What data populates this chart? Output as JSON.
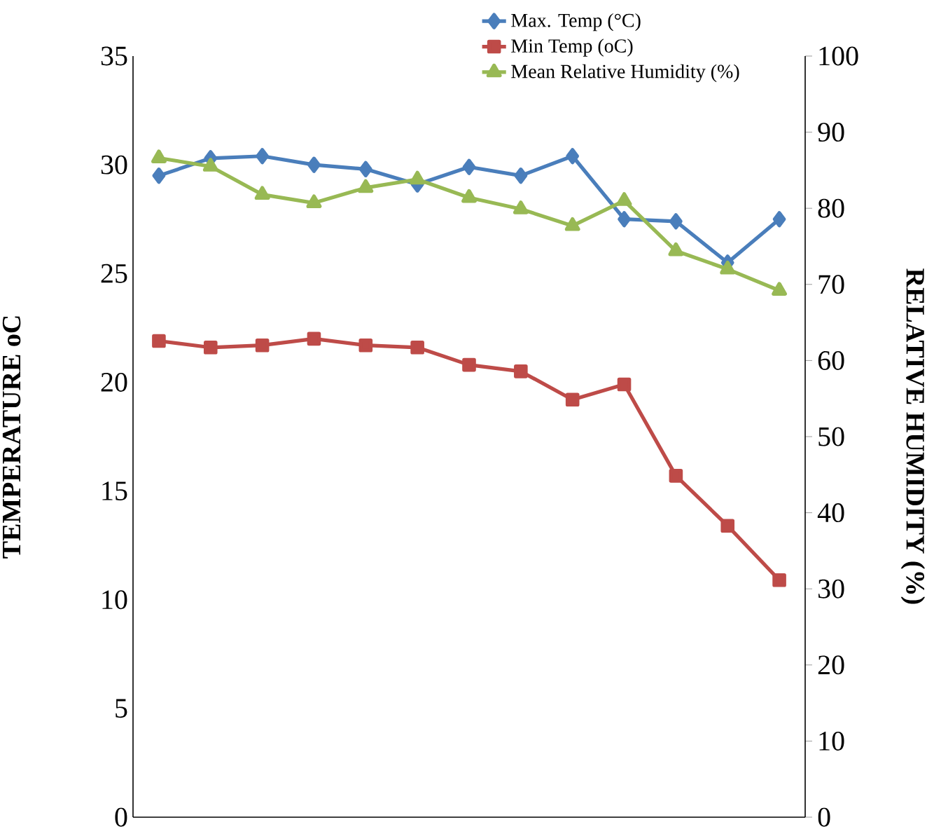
{
  "chart_data": {
    "type": "line",
    "ylabel": "TEMPERATURE oC",
    "y2label": "RELATIVE HUMIDITY (%)",
    "categories": [
      null,
      null,
      null,
      null,
      null,
      null,
      null,
      null,
      null,
      null,
      null,
      null,
      null
    ],
    "ylim": [
      0,
      35
    ],
    "yticks": [
      0,
      5,
      10,
      15,
      20,
      25,
      30,
      35
    ],
    "y2lim": [
      0,
      100
    ],
    "y2ticks": [
      0,
      10,
      20,
      30,
      40,
      50,
      60,
      70,
      80,
      90,
      100
    ],
    "legend": "top right",
    "grid": false,
    "line_style": "solid",
    "series": [
      {
        "name": "Max. Temp (°C)",
        "color": "#4a7ebb",
        "marker": "diamond",
        "values": [
          29.5,
          30.3,
          30.4,
          30.0,
          29.8,
          29.1,
          29.9,
          29.5,
          30.4,
          27.5,
          27.4,
          25.5,
          27.5
        ]
      },
      {
        "name": "Min Temp (oC)",
        "color": "#be4b48",
        "marker": "square",
        "values": [
          21.9,
          21.6,
          21.7,
          22.0,
          21.7,
          21.6,
          20.8,
          20.5,
          19.2,
          19.9,
          15.7,
          13.4,
          10.9
        ]
      },
      {
        "name": "Mean Relative Humidity (%)",
        "color": "#98b954",
        "marker": "triangle",
        "axis": "y2",
        "values": [
          86.6,
          85.5,
          81.8,
          80.7,
          82.7,
          83.8,
          81.4,
          79.9,
          77.7,
          81.0,
          74.4,
          72.0,
          69.2
        ]
      }
    ]
  }
}
